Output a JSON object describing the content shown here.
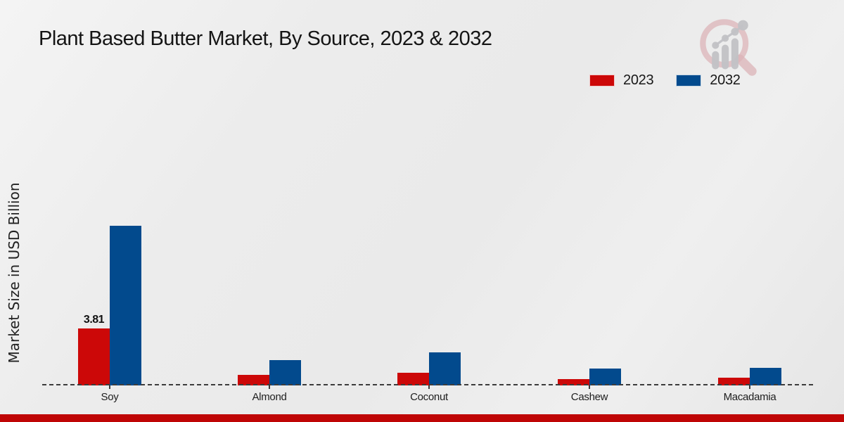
{
  "page": {
    "title": "Plant Based Butter Market, By Source, 2023 & 2032",
    "ylabel": "Market Size in USD Billion",
    "footer_bar_color": "#bf0505",
    "watermark": {
      "icon": "magnifier-growth-chart-logo",
      "glass_color": "#d9aeb2",
      "bars_color": "#c2c2c6"
    }
  },
  "chart_data": {
    "type": "bar",
    "title": "Plant Based Butter Market, By Source, 2023 & 2032",
    "xlabel": "",
    "ylabel": "Market Size in USD Billion",
    "categories": [
      "Soy",
      "Almond",
      "Coconut",
      "Cashew",
      "Macadamia"
    ],
    "series": [
      {
        "name": "2023",
        "color": "#cc0808",
        "values": [
          3.81,
          0.71,
          0.85,
          0.42,
          0.52
        ],
        "labels": [
          "3.81",
          "",
          "",
          "",
          ""
        ]
      },
      {
        "name": "2032",
        "color": "#024a8d",
        "values": [
          10.68,
          1.69,
          2.21,
          1.13,
          1.18
        ],
        "labels": [
          "",
          "",
          "",
          "",
          ""
        ]
      }
    ],
    "ylim": [
      0,
      12
    ],
    "grid": false,
    "legend_position": "top-right",
    "baseline_style": "dashed"
  }
}
